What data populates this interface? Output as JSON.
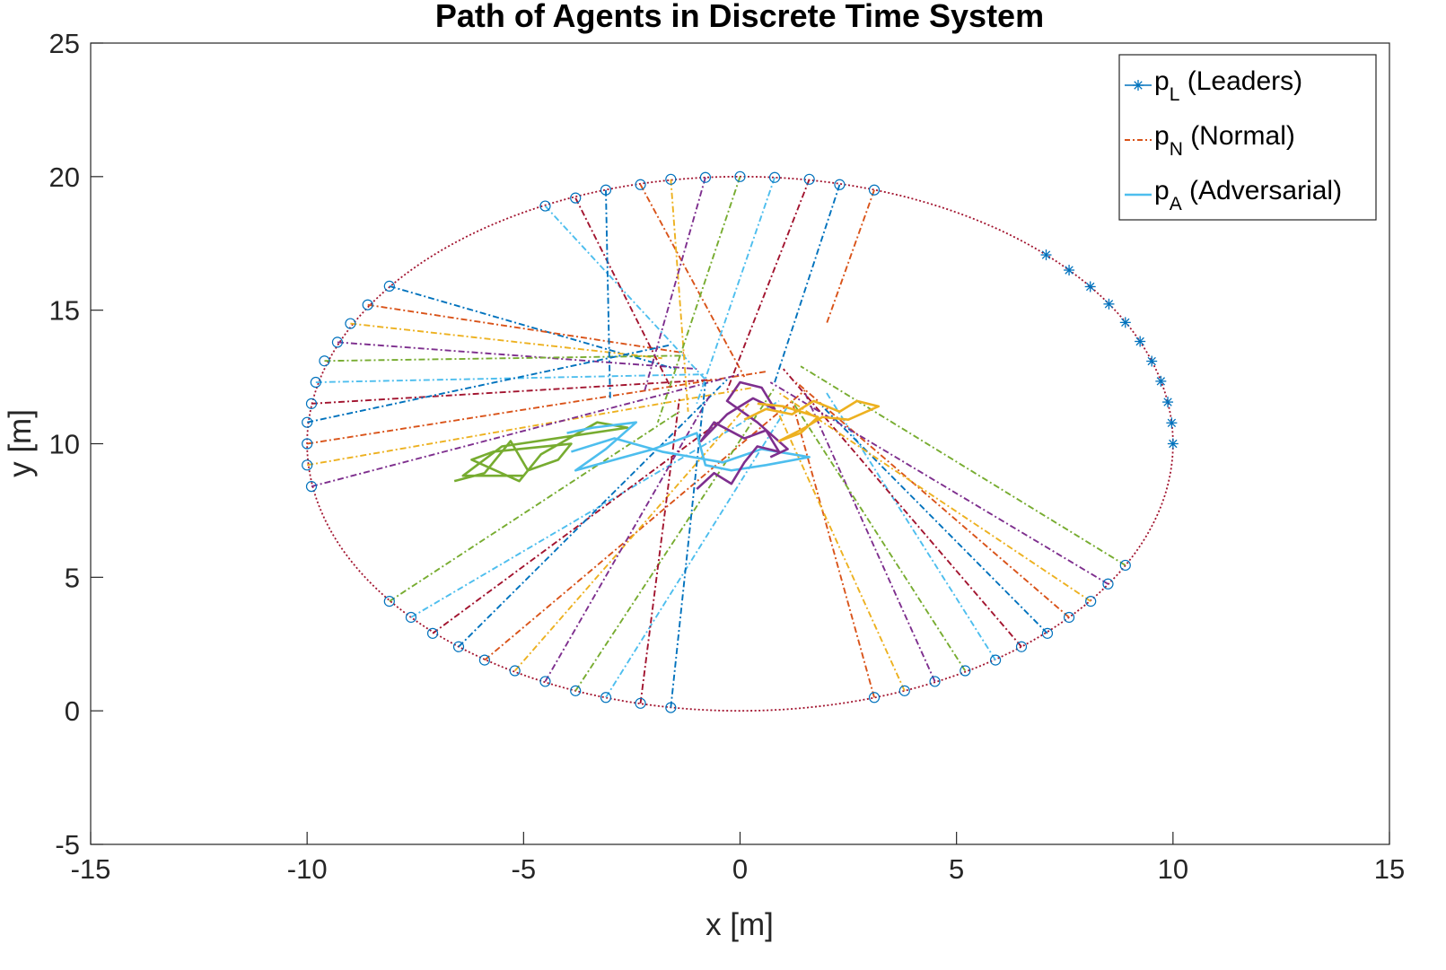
{
  "chart_data": {
    "type": "line",
    "title": "Path of Agents in Discrete Time System",
    "xlabel": "x [m]",
    "ylabel": "y [m]",
    "xlim": [
      -15,
      15
    ],
    "ylim": [
      -5,
      25
    ],
    "xticks": [
      -15,
      -10,
      -5,
      0,
      5,
      10,
      15
    ],
    "yticks": [
      -5,
      0,
      5,
      10,
      15,
      20,
      25
    ],
    "xtick_labels": [
      "-15",
      "-10",
      "-5",
      "0",
      "5",
      "10",
      "15"
    ],
    "ytick_labels": [
      "-5",
      "0",
      "5",
      "10",
      "15",
      "20",
      "25"
    ],
    "grid": false,
    "legend_position": "top-right",
    "legend": [
      {
        "base": "p",
        "sub": "L",
        "text": " (Leaders)",
        "style": "star-line",
        "color": "#0072BD"
      },
      {
        "base": "p",
        "sub": "N",
        "text": " (Normal)",
        "style": "dash-dot",
        "color": "#D95319"
      },
      {
        "base": "p",
        "sub": "A",
        "text": " (Adversarial)",
        "style": "solid",
        "color": "#4DBEEE"
      }
    ],
    "palette": [
      "#0072BD",
      "#D95319",
      "#EDB120",
      "#7E2F8E",
      "#77AC30",
      "#4DBEEE",
      "#A2142F"
    ],
    "boundary_circle": {
      "center": [
        0,
        10
      ],
      "radius": 10,
      "color": "#A2142F",
      "style": "dotted"
    },
    "leaders": {
      "color": "#0072BD",
      "marker": "star",
      "points": [
        [
          7.07,
          17.07
        ],
        [
          7.6,
          16.5
        ],
        [
          8.09,
          15.88
        ],
        [
          8.52,
          15.23
        ],
        [
          8.9,
          14.54
        ],
        [
          9.24,
          13.83
        ],
        [
          9.51,
          13.09
        ],
        [
          9.72,
          12.34
        ],
        [
          9.88,
          11.56
        ],
        [
          9.97,
          10.78
        ],
        [
          10.0,
          10.0
        ]
      ]
    },
    "normal_starts": [
      [
        -8.1,
        15.9
      ],
      [
        -8.6,
        15.2
      ],
      [
        -9.0,
        14.5
      ],
      [
        -9.3,
        13.8
      ],
      [
        -9.6,
        13.1
      ],
      [
        -9.8,
        12.3
      ],
      [
        -9.9,
        11.5
      ],
      [
        -10.0,
        10.8
      ],
      [
        -10.0,
        10.0
      ],
      [
        -10.0,
        9.2
      ],
      [
        -9.9,
        8.4
      ],
      [
        -8.1,
        4.1
      ],
      [
        -7.6,
        3.5
      ],
      [
        -7.1,
        2.9
      ],
      [
        -6.5,
        2.4
      ],
      [
        -5.9,
        1.9
      ],
      [
        -5.2,
        1.5
      ],
      [
        -4.5,
        1.1
      ],
      [
        -3.8,
        0.75
      ],
      [
        -3.1,
        0.5
      ],
      [
        -2.3,
        0.28
      ],
      [
        -1.6,
        0.12
      ],
      [
        3.1,
        0.5
      ],
      [
        3.8,
        0.75
      ],
      [
        4.5,
        1.1
      ],
      [
        5.2,
        1.5
      ],
      [
        5.9,
        1.9
      ],
      [
        6.5,
        2.4
      ],
      [
        7.1,
        2.9
      ],
      [
        7.6,
        3.5
      ],
      [
        8.1,
        4.1
      ],
      [
        8.5,
        4.75
      ],
      [
        8.9,
        5.45
      ],
      [
        -4.5,
        18.9
      ],
      [
        -3.8,
        19.2
      ],
      [
        -3.1,
        19.5
      ],
      [
        -2.3,
        19.7
      ],
      [
        -1.6,
        19.9
      ],
      [
        -0.8,
        19.97
      ],
      [
        0.0,
        20.0
      ],
      [
        0.8,
        19.97
      ],
      [
        1.6,
        19.9
      ],
      [
        2.3,
        19.7
      ],
      [
        3.1,
        19.5
      ]
    ],
    "normal_ends": [
      [
        -1.5,
        12.8
      ],
      [
        -1.3,
        13.4
      ],
      [
        -1.8,
        13.2
      ],
      [
        -1.0,
        12.8
      ],
      [
        -1.2,
        13.3
      ],
      [
        -0.8,
        12.6
      ],
      [
        -0.6,
        12.4
      ],
      [
        -1.6,
        13.7
      ],
      [
        0.6,
        12.7
      ],
      [
        0.3,
        12.1
      ],
      [
        0.0,
        12.6
      ],
      [
        -1.4,
        11.2
      ],
      [
        0.9,
        11.6
      ],
      [
        -0.5,
        10.8
      ],
      [
        -0.3,
        12.4
      ],
      [
        1.5,
        12.0
      ],
      [
        0.2,
        11.5
      ],
      [
        -0.7,
        11.8
      ],
      [
        0.8,
        12.1
      ],
      [
        1.1,
        11.4
      ],
      [
        -1.4,
        11.7
      ],
      [
        -0.8,
        12.3
      ],
      [
        1.2,
        11.6
      ],
      [
        0.9,
        11.1
      ],
      [
        1.5,
        11.9
      ],
      [
        1.2,
        11.6
      ],
      [
        2.0,
        11.9
      ],
      [
        1.0,
        12.8
      ],
      [
        1.9,
        11.4
      ],
      [
        1.3,
        12.3
      ],
      [
        0.9,
        11.9
      ],
      [
        0.7,
        12.3
      ],
      [
        1.4,
        12.9
      ],
      [
        -0.8,
        12.4
      ],
      [
        -1.6,
        12.1
      ],
      [
        -3.0,
        11.7
      ],
      [
        0.1,
        12.5
      ],
      [
        -1.2,
        11.2
      ],
      [
        -2.2,
        12.0
      ],
      [
        -1.9,
        10.8
      ],
      [
        -1.0,
        11.5
      ],
      [
        -0.3,
        12.0
      ],
      [
        0.8,
        12.3
      ],
      [
        2.0,
        14.5
      ]
    ],
    "adversarial": [
      {
        "color": "#77AC30",
        "points": [
          [
            -6.6,
            8.6
          ],
          [
            -5.9,
            8.9
          ],
          [
            -5.3,
            10.1
          ],
          [
            -4.9,
            9.0
          ],
          [
            -4.2,
            9.4
          ],
          [
            -3.9,
            10.0
          ],
          [
            -5.7,
            9.7
          ],
          [
            -6.2,
            9.4
          ],
          [
            -5.1,
            8.6
          ],
          [
            -4.6,
            9.6
          ],
          [
            -3.3,
            10.8
          ],
          [
            -2.6,
            10.6
          ],
          [
            -5.5,
            9.9
          ],
          [
            -6.4,
            8.8
          ],
          [
            -5.0,
            8.8
          ]
        ]
      },
      {
        "color": "#4DBEEE",
        "points": [
          [
            -4.0,
            10.4
          ],
          [
            -3.4,
            10.6
          ],
          [
            -2.4,
            10.8
          ],
          [
            -3.1,
            9.8
          ],
          [
            -3.8,
            9.0
          ],
          [
            -2.0,
            9.8
          ],
          [
            -1.0,
            10.4
          ],
          [
            -0.8,
            9.2
          ],
          [
            -0.2,
            9.0
          ],
          [
            0.6,
            9.2
          ],
          [
            1.6,
            9.5
          ],
          [
            0.5,
            9.8
          ],
          [
            -0.4,
            9.3
          ],
          [
            -1.8,
            9.7
          ],
          [
            -2.9,
            10.2
          ],
          [
            -3.9,
            9.7
          ]
        ]
      },
      {
        "color": "#7E2F8E",
        "points": [
          [
            -1.0,
            8.3
          ],
          [
            -0.6,
            8.9
          ],
          [
            -0.2,
            8.5
          ],
          [
            0.1,
            9.3
          ],
          [
            0.4,
            9.9
          ],
          [
            0.9,
            9.7
          ],
          [
            0.6,
            10.5
          ],
          [
            0.1,
            10.2
          ],
          [
            -0.6,
            10.8
          ],
          [
            -0.9,
            10.1
          ],
          [
            -0.3,
            11.1
          ],
          [
            0.3,
            11.7
          ],
          [
            0.8,
            11.3
          ],
          [
            0.5,
            12.1
          ],
          [
            0.0,
            12.3
          ],
          [
            -0.3,
            11.6
          ],
          [
            0.4,
            10.8
          ],
          [
            1.1,
            9.8
          ],
          [
            0.7,
            9.5
          ]
        ]
      },
      {
        "color": "#EDB120",
        "points": [
          [
            0.1,
            10.9
          ],
          [
            0.6,
            11.3
          ],
          [
            1.2,
            11.1
          ],
          [
            1.7,
            11.6
          ],
          [
            2.3,
            11.2
          ],
          [
            2.7,
            11.6
          ],
          [
            3.2,
            11.4
          ],
          [
            2.5,
            10.9
          ],
          [
            1.9,
            11.0
          ],
          [
            1.5,
            10.6
          ],
          [
            0.9,
            10.1
          ],
          [
            1.4,
            10.4
          ],
          [
            1.8,
            11.0
          ],
          [
            1.0,
            11.4
          ],
          [
            0.4,
            11.5
          ]
        ]
      }
    ]
  }
}
